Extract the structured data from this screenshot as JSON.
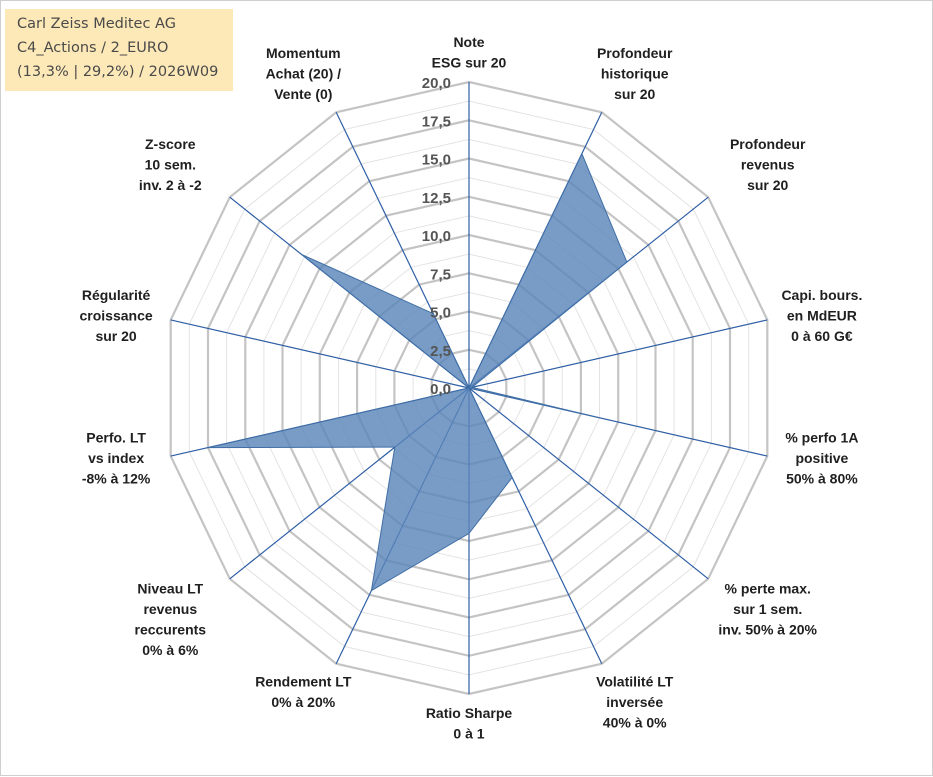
{
  "info": {
    "line1": "Carl Zeiss Meditec AG",
    "line2": "C4_Actions / 2_EURO",
    "line3": "(13,3% | 29,2%) / 2026W09"
  },
  "colors": {
    "series_fill": "#5b86b9",
    "series_stroke": "#3f6ea6",
    "spoke": "#2f5fa5",
    "grid_major": "#c4c4c4",
    "grid_minor": "#e3e3e3",
    "info_bg": "#fde9b8"
  },
  "chart_data": {
    "type": "radar",
    "title": "",
    "rmin": 0,
    "rmax": 20,
    "major_step": 2.5,
    "ticks": [
      "0,0",
      "2,5",
      "5,0",
      "7,5",
      "10,0",
      "12,5",
      "15,0",
      "17,5",
      "20,0"
    ],
    "axes": [
      [
        "Note",
        "ESG sur 20"
      ],
      [
        "Profondeur",
        "historique",
        "sur 20"
      ],
      [
        "Profondeur",
        "revenus",
        "sur 20"
      ],
      [
        "Capi. bours.",
        "en MdEUR",
        "0 à 60 G€"
      ],
      [
        "% perfo 1A",
        "positive",
        "50% à 80%"
      ],
      [
        "% perte max.",
        "sur 1 sem.",
        "inv. 50% à 20%"
      ],
      [
        "Volatilité LT",
        "inversée",
        "40% à 0%"
      ],
      [
        "Ratio Sharpe",
        "0 à 1"
      ],
      [
        "Rendement LT",
        "0% à 20%"
      ],
      [
        "Niveau LT",
        "revenus",
        "reccurents",
        "0% à 6%"
      ],
      [
        "Perfo. LT",
        "vs index",
        "-8% à 12%"
      ],
      [
        "Régularité",
        "croissance",
        "sur 20"
      ],
      [
        "Z-score",
        "10 sem.",
        "inv. 2 à -2"
      ],
      [
        "Momentum",
        "Achat (20) /",
        "Vente (0)"
      ]
    ],
    "values": [
      0,
      17.0,
      13.2,
      0.2,
      8.7,
      0,
      6.5,
      9.5,
      14.7,
      6.2,
      17.5,
      0,
      14.0,
      5.4
    ]
  }
}
